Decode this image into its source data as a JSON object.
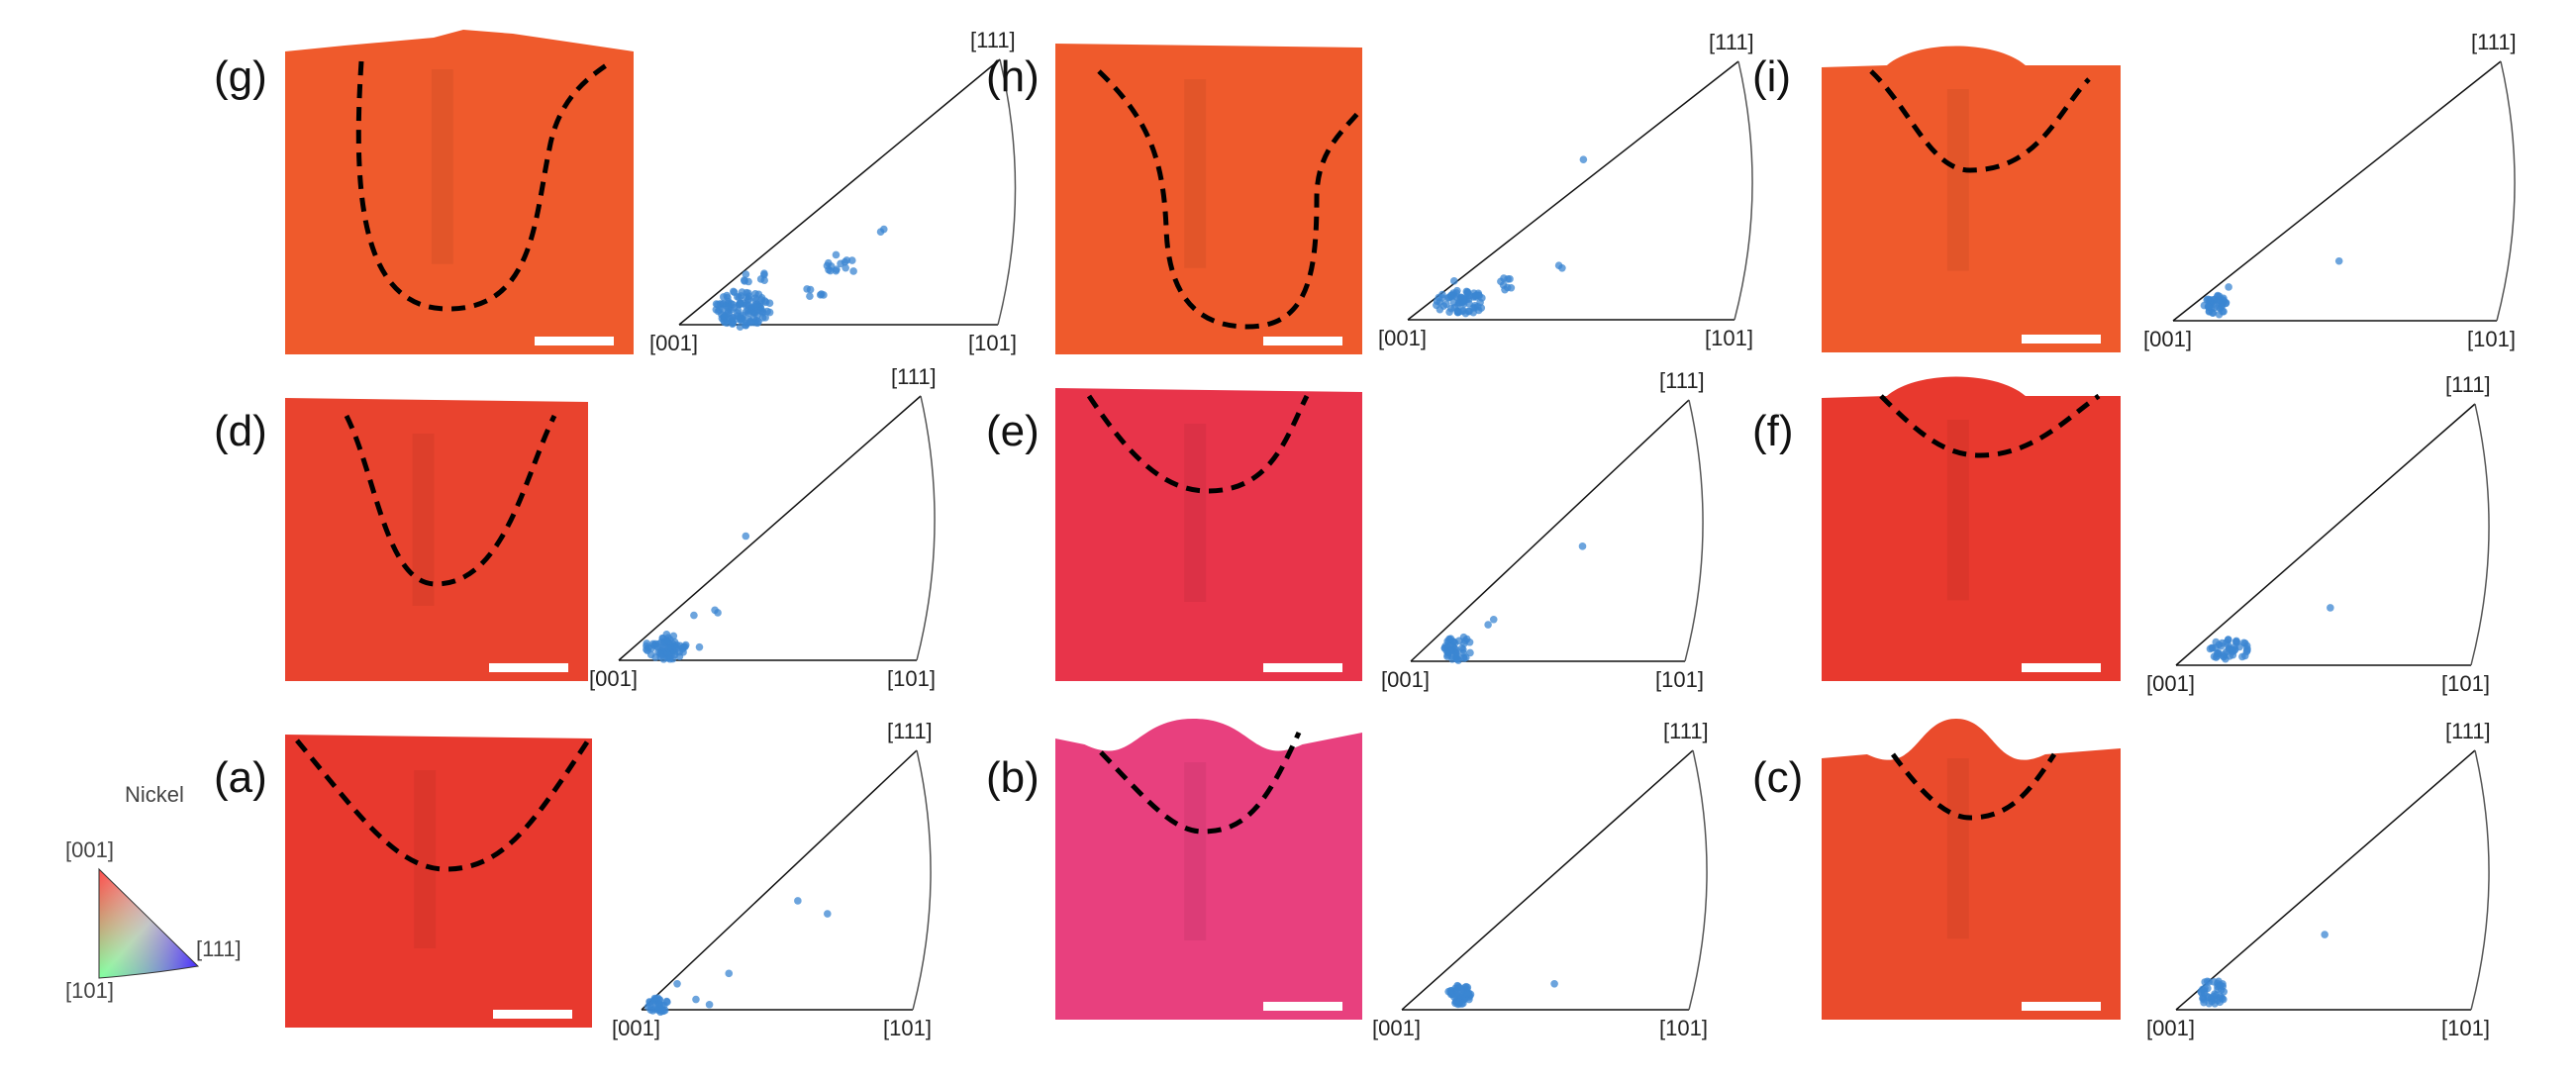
{
  "legend": {
    "title": "Nickel",
    "corner_001": "[001]",
    "corner_101": "[101]",
    "corner_111": "[111]"
  },
  "pole_figure_axes": {
    "origin": "[001]",
    "right": "[101]",
    "apex": "[111]"
  },
  "colors": {
    "ipf_point": "#3b86d1",
    "boundary": "#000000",
    "orange_map": "#ef5a2c",
    "red_map": "#e8392e",
    "pink_red_map": "#e8344a",
    "magenta_map": "#e8407e"
  },
  "panels": [
    {
      "id": "g",
      "label": "(g)",
      "map_color": "#ef5a2c",
      "scale_bar": true,
      "boundary": "deep keyhole"
    },
    {
      "id": "h",
      "label": "(h)",
      "map_color": "#ef5a2c",
      "scale_bar": true,
      "boundary": "deep keyhole"
    },
    {
      "id": "i",
      "label": "(i)",
      "map_color": "#ef5a2c",
      "scale_bar": true,
      "boundary": "shallow bowl"
    },
    {
      "id": "d",
      "label": "(d)",
      "map_color": "#e9432e",
      "scale_bar": true,
      "boundary": "v-shape"
    },
    {
      "id": "e",
      "label": "(e)",
      "map_color": "#e8344a",
      "scale_bar": true,
      "boundary": "shallow bowl"
    },
    {
      "id": "f",
      "label": "(f)",
      "map_color": "#e8392e",
      "scale_bar": true,
      "boundary": "shallow bowl"
    },
    {
      "id": "a",
      "label": "(a)",
      "map_color": "#e8392e",
      "scale_bar": true,
      "boundary": "wide v"
    },
    {
      "id": "b",
      "label": "(b)",
      "map_color": "#e8407e",
      "scale_bar": true,
      "boundary": "bowl"
    },
    {
      "id": "c",
      "label": "(c)",
      "map_color": "#ea4b2c",
      "scale_bar": true,
      "boundary": "small bowl"
    }
  ]
}
